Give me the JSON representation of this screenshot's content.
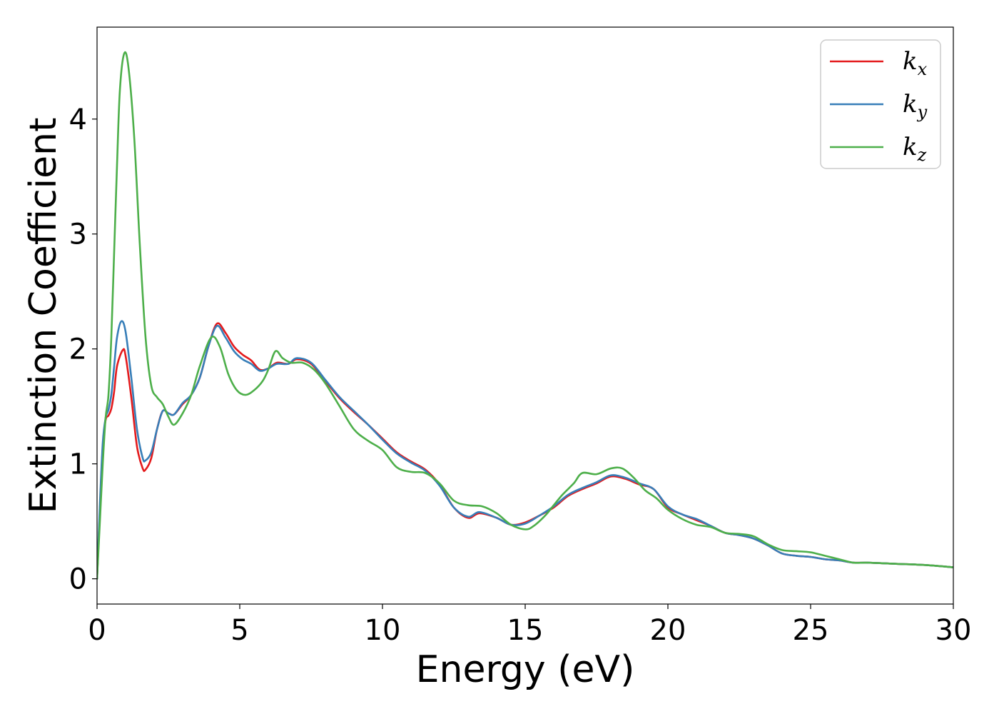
{
  "chart_data": {
    "type": "line",
    "title": "",
    "xlabel": "Energy (eV)",
    "ylabel": "Extinction Coefficient",
    "xlim": [
      0,
      30
    ],
    "ylim": [
      -0.22,
      4.8
    ],
    "xticks": [
      0,
      5,
      10,
      15,
      20,
      25,
      30
    ],
    "yticks": [
      0,
      1,
      2,
      3,
      4
    ],
    "grid": false,
    "legend_position": "top-right",
    "series": [
      {
        "name": "k_x",
        "label_base": "k",
        "label_sub": "x",
        "color": "#e41a1c",
        "points": [
          [
            0,
            0
          ],
          [
            0.1,
            0.6
          ],
          [
            0.2,
            1.15
          ],
          [
            0.3,
            1.38
          ],
          [
            0.4,
            1.42
          ],
          [
            0.5,
            1.48
          ],
          [
            0.6,
            1.63
          ],
          [
            0.7,
            1.85
          ],
          [
            0.9,
            1.99
          ],
          [
            1.0,
            1.94
          ],
          [
            1.2,
            1.58
          ],
          [
            1.4,
            1.15
          ],
          [
            1.6,
            0.96
          ],
          [
            1.7,
            0.95
          ],
          [
            1.9,
            1.05
          ],
          [
            2.1,
            1.3
          ],
          [
            2.3,
            1.46
          ],
          [
            2.5,
            1.44
          ],
          [
            2.7,
            1.43
          ],
          [
            3.0,
            1.52
          ],
          [
            3.3,
            1.6
          ],
          [
            3.6,
            1.75
          ],
          [
            3.9,
            2.02
          ],
          [
            4.2,
            2.22
          ],
          [
            4.5,
            2.14
          ],
          [
            4.8,
            2.02
          ],
          [
            5.1,
            1.95
          ],
          [
            5.4,
            1.9
          ],
          [
            5.7,
            1.82
          ],
          [
            6.0,
            1.83
          ],
          [
            6.3,
            1.88
          ],
          [
            6.7,
            1.87
          ],
          [
            7.0,
            1.91
          ],
          [
            7.5,
            1.87
          ],
          [
            8.0,
            1.72
          ],
          [
            8.5,
            1.57
          ],
          [
            9.0,
            1.45
          ],
          [
            9.5,
            1.34
          ],
          [
            10.0,
            1.22
          ],
          [
            10.5,
            1.1
          ],
          [
            11.0,
            1.02
          ],
          [
            11.5,
            0.95
          ],
          [
            12.0,
            0.82
          ],
          [
            12.5,
            0.62
          ],
          [
            13.0,
            0.53
          ],
          [
            13.4,
            0.57
          ],
          [
            14.0,
            0.53
          ],
          [
            14.5,
            0.47
          ],
          [
            15.0,
            0.49
          ],
          [
            15.5,
            0.55
          ],
          [
            16.0,
            0.62
          ],
          [
            16.5,
            0.72
          ],
          [
            17.0,
            0.78
          ],
          [
            17.5,
            0.83
          ],
          [
            18.0,
            0.89
          ],
          [
            18.5,
            0.87
          ],
          [
            19.0,
            0.82
          ],
          [
            19.5,
            0.78
          ],
          [
            20.0,
            0.62
          ],
          [
            20.5,
            0.56
          ],
          [
            21.0,
            0.51
          ],
          [
            21.5,
            0.46
          ],
          [
            22.0,
            0.4
          ],
          [
            22.5,
            0.38
          ],
          [
            23.0,
            0.35
          ],
          [
            23.5,
            0.29
          ],
          [
            24.0,
            0.22
          ],
          [
            24.5,
            0.2
          ],
          [
            25.0,
            0.19
          ],
          [
            25.5,
            0.17
          ],
          [
            26.0,
            0.16
          ],
          [
            26.5,
            0.14
          ],
          [
            27.0,
            0.14
          ],
          [
            28.0,
            0.13
          ],
          [
            29.0,
            0.12
          ],
          [
            30.0,
            0.1
          ]
        ]
      },
      {
        "name": "k_y",
        "label_base": "k",
        "label_sub": "y",
        "color": "#377eb8",
        "points": [
          [
            0,
            0
          ],
          [
            0.1,
            0.65
          ],
          [
            0.2,
            1.18
          ],
          [
            0.3,
            1.4
          ],
          [
            0.4,
            1.47
          ],
          [
            0.5,
            1.6
          ],
          [
            0.6,
            1.85
          ],
          [
            0.7,
            2.1
          ],
          [
            0.85,
            2.24
          ],
          [
            1.0,
            2.15
          ],
          [
            1.2,
            1.75
          ],
          [
            1.4,
            1.3
          ],
          [
            1.6,
            1.05
          ],
          [
            1.7,
            1.03
          ],
          [
            1.9,
            1.1
          ],
          [
            2.1,
            1.3
          ],
          [
            2.3,
            1.46
          ],
          [
            2.5,
            1.44
          ],
          [
            2.7,
            1.43
          ],
          [
            3.0,
            1.53
          ],
          [
            3.3,
            1.6
          ],
          [
            3.6,
            1.75
          ],
          [
            3.9,
            2.02
          ],
          [
            4.2,
            2.2
          ],
          [
            4.5,
            2.1
          ],
          [
            4.8,
            1.98
          ],
          [
            5.1,
            1.91
          ],
          [
            5.4,
            1.87
          ],
          [
            5.7,
            1.81
          ],
          [
            6.0,
            1.83
          ],
          [
            6.3,
            1.87
          ],
          [
            6.7,
            1.87
          ],
          [
            7.0,
            1.92
          ],
          [
            7.5,
            1.88
          ],
          [
            8.0,
            1.73
          ],
          [
            8.5,
            1.58
          ],
          [
            9.0,
            1.46
          ],
          [
            9.5,
            1.34
          ],
          [
            10.0,
            1.21
          ],
          [
            10.5,
            1.09
          ],
          [
            11.0,
            1.01
          ],
          [
            11.5,
            0.94
          ],
          [
            12.0,
            0.81
          ],
          [
            12.5,
            0.62
          ],
          [
            13.0,
            0.54
          ],
          [
            13.4,
            0.58
          ],
          [
            14.0,
            0.53
          ],
          [
            14.5,
            0.47
          ],
          [
            15.0,
            0.48
          ],
          [
            15.5,
            0.55
          ],
          [
            16.0,
            0.63
          ],
          [
            16.5,
            0.73
          ],
          [
            17.0,
            0.79
          ],
          [
            17.5,
            0.84
          ],
          [
            18.0,
            0.9
          ],
          [
            18.5,
            0.88
          ],
          [
            19.0,
            0.83
          ],
          [
            19.5,
            0.78
          ],
          [
            20.0,
            0.63
          ],
          [
            20.5,
            0.56
          ],
          [
            21.0,
            0.52
          ],
          [
            21.5,
            0.46
          ],
          [
            22.0,
            0.4
          ],
          [
            22.5,
            0.38
          ],
          [
            23.0,
            0.35
          ],
          [
            23.5,
            0.29
          ],
          [
            24.0,
            0.22
          ],
          [
            24.5,
            0.2
          ],
          [
            25.0,
            0.19
          ],
          [
            25.5,
            0.17
          ],
          [
            26.0,
            0.16
          ],
          [
            26.5,
            0.14
          ],
          [
            27.0,
            0.14
          ],
          [
            28.0,
            0.13
          ],
          [
            29.0,
            0.12
          ],
          [
            30.0,
            0.1
          ]
        ]
      },
      {
        "name": "k_z",
        "label_base": "k",
        "label_sub": "z",
        "color": "#4daf4a",
        "points": [
          [
            0,
            0
          ],
          [
            0.1,
            0.5
          ],
          [
            0.2,
            1.0
          ],
          [
            0.3,
            1.4
          ],
          [
            0.4,
            1.6
          ],
          [
            0.5,
            2.1
          ],
          [
            0.6,
            2.85
          ],
          [
            0.7,
            3.6
          ],
          [
            0.8,
            4.25
          ],
          [
            0.95,
            4.57
          ],
          [
            1.1,
            4.45
          ],
          [
            1.3,
            3.85
          ],
          [
            1.5,
            2.9
          ],
          [
            1.7,
            2.1
          ],
          [
            1.9,
            1.68
          ],
          [
            2.1,
            1.58
          ],
          [
            2.3,
            1.52
          ],
          [
            2.5,
            1.41
          ],
          [
            2.7,
            1.34
          ],
          [
            3.0,
            1.44
          ],
          [
            3.3,
            1.6
          ],
          [
            3.6,
            1.85
          ],
          [
            4.0,
            2.1
          ],
          [
            4.3,
            2.02
          ],
          [
            4.6,
            1.78
          ],
          [
            4.9,
            1.64
          ],
          [
            5.2,
            1.6
          ],
          [
            5.5,
            1.64
          ],
          [
            5.8,
            1.72
          ],
          [
            6.0,
            1.82
          ],
          [
            6.25,
            1.98
          ],
          [
            6.5,
            1.92
          ],
          [
            6.8,
            1.88
          ],
          [
            7.2,
            1.88
          ],
          [
            7.6,
            1.82
          ],
          [
            8.0,
            1.7
          ],
          [
            8.5,
            1.5
          ],
          [
            9.0,
            1.3
          ],
          [
            9.5,
            1.2
          ],
          [
            10.0,
            1.12
          ],
          [
            10.5,
            0.97
          ],
          [
            11.0,
            0.93
          ],
          [
            11.5,
            0.92
          ],
          [
            12.0,
            0.83
          ],
          [
            12.5,
            0.68
          ],
          [
            13.0,
            0.64
          ],
          [
            13.5,
            0.63
          ],
          [
            14.0,
            0.57
          ],
          [
            14.5,
            0.47
          ],
          [
            15.0,
            0.43
          ],
          [
            15.3,
            0.46
          ],
          [
            15.7,
            0.55
          ],
          [
            16.0,
            0.64
          ],
          [
            16.3,
            0.73
          ],
          [
            16.7,
            0.83
          ],
          [
            17.0,
            0.92
          ],
          [
            17.5,
            0.91
          ],
          [
            18.0,
            0.96
          ],
          [
            18.4,
            0.96
          ],
          [
            18.8,
            0.88
          ],
          [
            19.2,
            0.77
          ],
          [
            19.6,
            0.7
          ],
          [
            20.0,
            0.6
          ],
          [
            20.5,
            0.52
          ],
          [
            21.0,
            0.47
          ],
          [
            21.5,
            0.45
          ],
          [
            22.0,
            0.4
          ],
          [
            22.5,
            0.39
          ],
          [
            23.0,
            0.37
          ],
          [
            23.5,
            0.3
          ],
          [
            24.0,
            0.25
          ],
          [
            24.5,
            0.24
          ],
          [
            25.0,
            0.23
          ],
          [
            25.5,
            0.2
          ],
          [
            26.0,
            0.17
          ],
          [
            26.5,
            0.14
          ],
          [
            27.0,
            0.14
          ],
          [
            28.0,
            0.13
          ],
          [
            29.0,
            0.12
          ],
          [
            30.0,
            0.1
          ]
        ]
      }
    ]
  }
}
